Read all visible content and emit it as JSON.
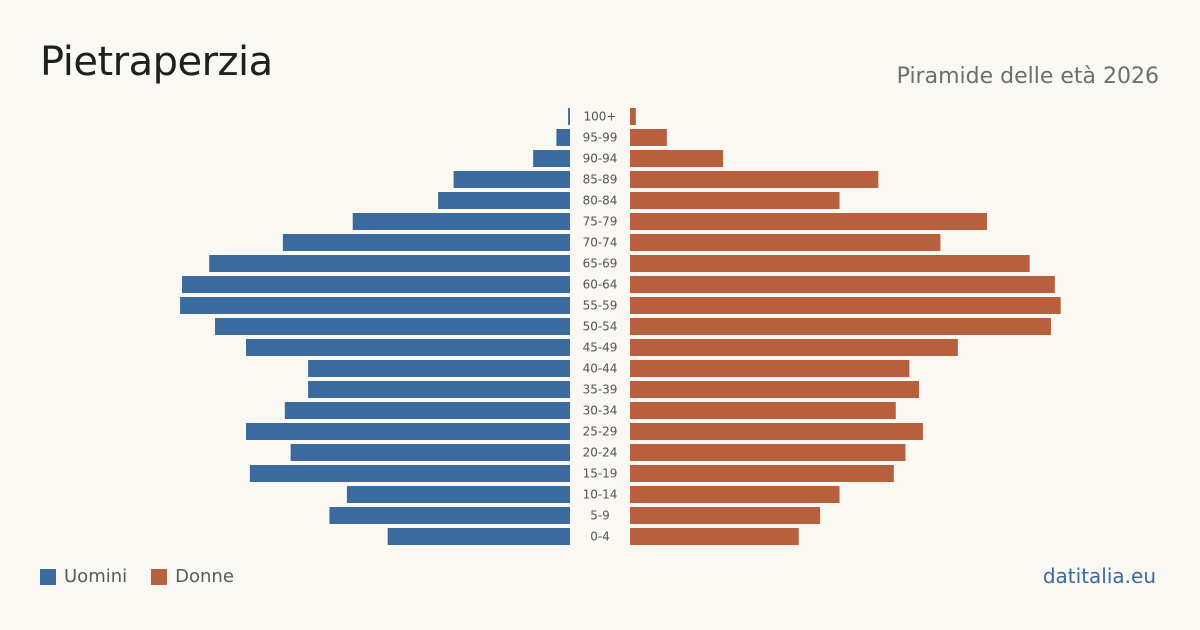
{
  "header": {
    "title": "Pietraperzia",
    "subtitle": "Piramide delle età 2026"
  },
  "legend": {
    "men_label": "Uomini",
    "women_label": "Donne"
  },
  "footer": {
    "brand": "datitalia.eu"
  },
  "colors": {
    "men": "#3b6b9e",
    "women": "#b85f3e",
    "label": "#555555"
  },
  "chart_data": {
    "type": "bar",
    "orientation": "horizontal-pyramid",
    "categories": [
      "100+",
      "95-99",
      "90-94",
      "85-89",
      "80-84",
      "75-79",
      "70-74",
      "65-69",
      "60-64",
      "55-59",
      "50-54",
      "45-49",
      "40-44",
      "35-39",
      "30-34",
      "25-29",
      "20-24",
      "15-19",
      "10-14",
      "5-9",
      "0-4"
    ],
    "series": [
      {
        "name": "Uomini",
        "values": [
          1,
          7,
          19,
          60,
          68,
          112,
          148,
          186,
          200,
          201,
          183,
          167,
          135,
          135,
          147,
          167,
          144,
          165,
          115,
          124,
          94
        ]
      },
      {
        "name": "Donne",
        "values": [
          3,
          19,
          48,
          128,
          108,
          184,
          160,
          206,
          219,
          222,
          217,
          169,
          144,
          149,
          137,
          151,
          142,
          136,
          108,
          98,
          87
        ]
      }
    ],
    "grid": false,
    "legend_position": "bottom-left"
  }
}
